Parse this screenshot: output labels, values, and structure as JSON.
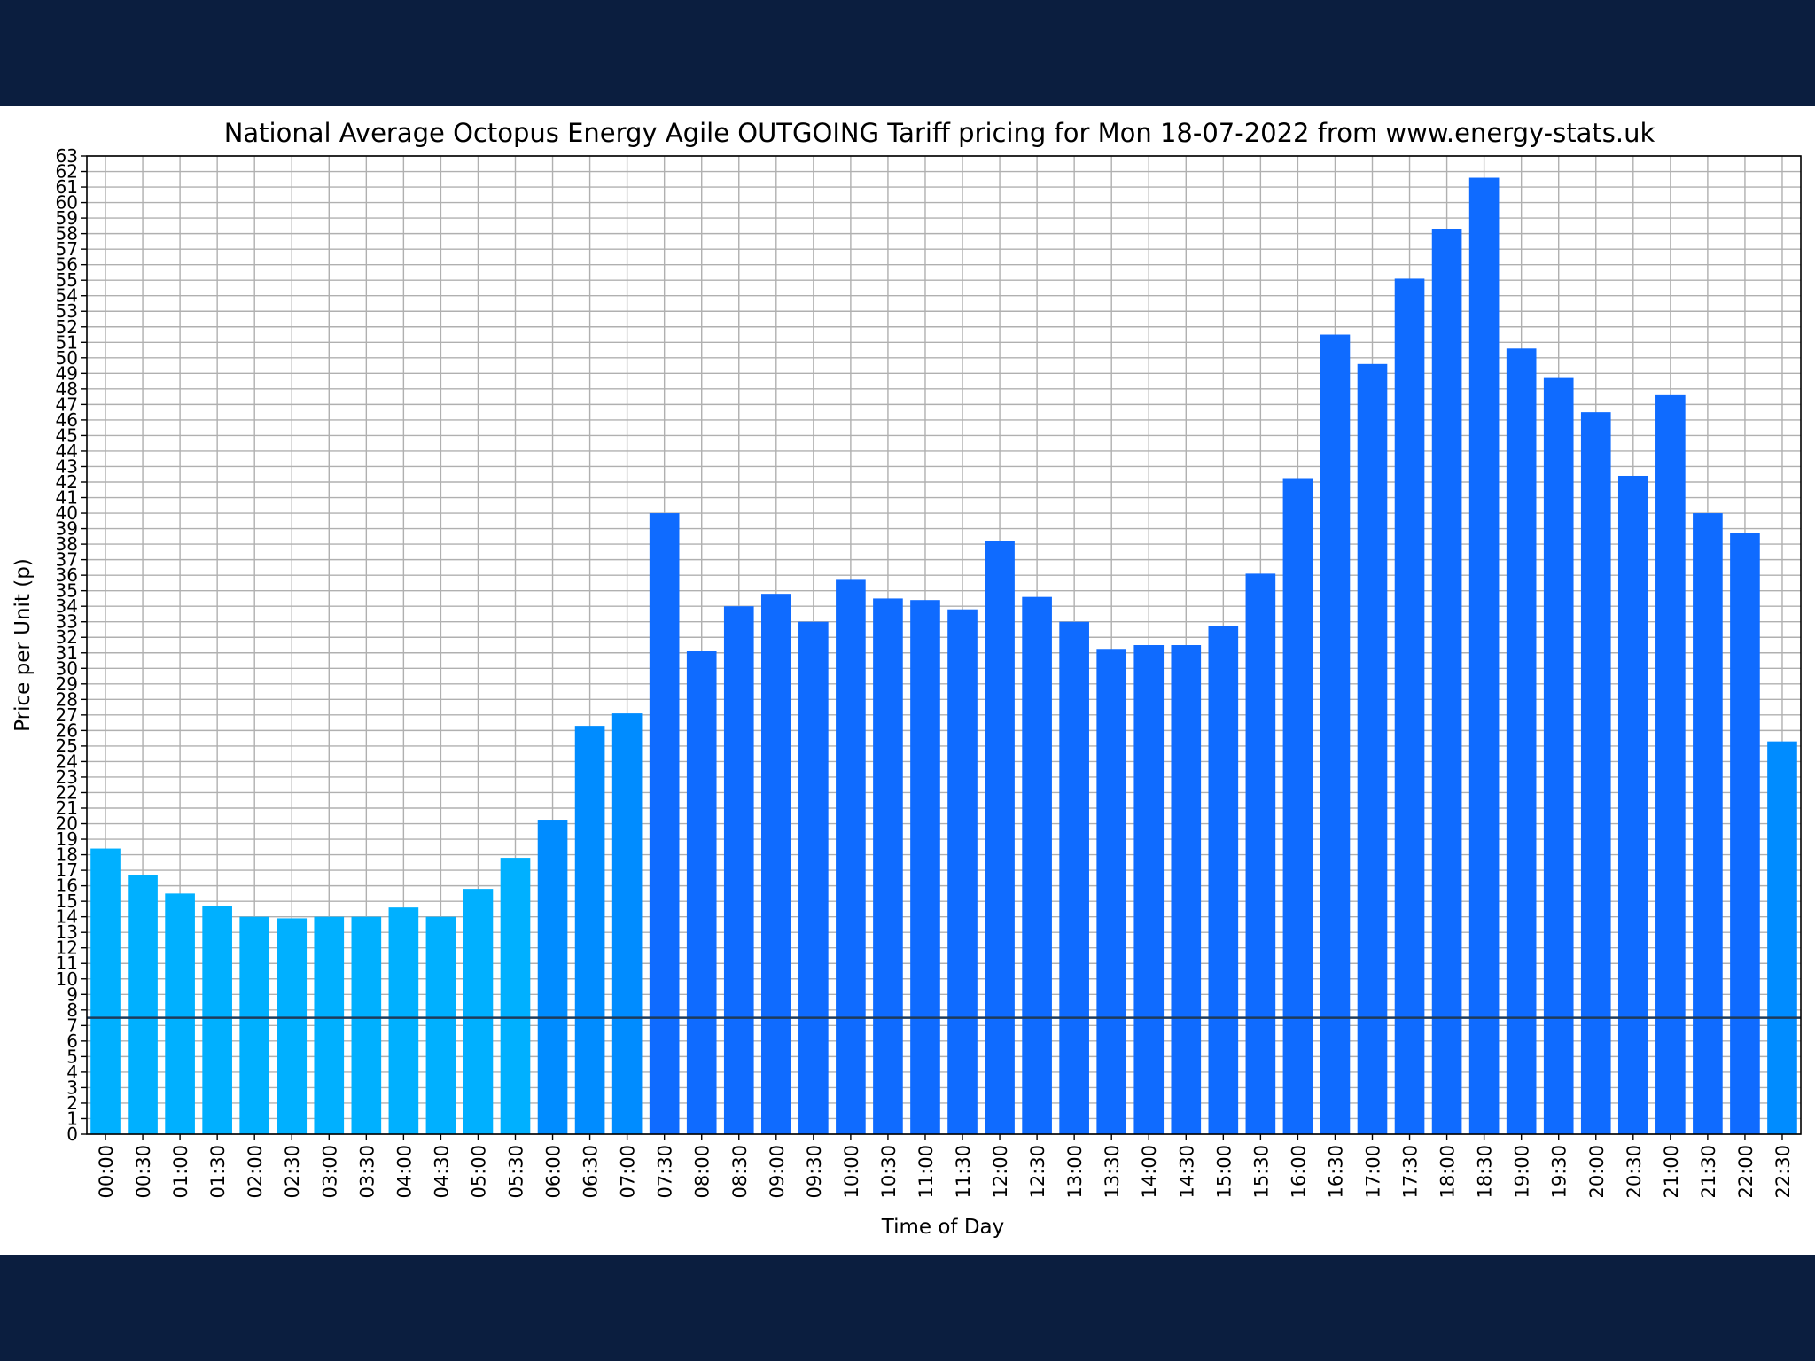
{
  "colors": {
    "page_background": "#0b1e3f",
    "figure_background": "#ffffff",
    "bar_low": "#00b0ff",
    "bar_mid": "#008cff",
    "bar_high": "#0f6bff",
    "grid": "#b0b0b0",
    "reference_line": "#1f3b5a"
  },
  "chart_data": {
    "type": "bar",
    "title": "National Average Octopus Energy Agile OUTGOING Tariff pricing for Mon 18-07-2022 from www.energy-stats.uk",
    "xlabel": "Time of Day",
    "ylabel": "Price per Unit (p)",
    "ylim": [
      0,
      63
    ],
    "yticks": [
      0,
      1,
      2,
      3,
      4,
      5,
      6,
      7,
      8,
      9,
      10,
      11,
      12,
      13,
      14,
      15,
      16,
      17,
      18,
      19,
      20,
      21,
      22,
      23,
      24,
      25,
      26,
      27,
      28,
      29,
      30,
      31,
      32,
      33,
      34,
      35,
      36,
      37,
      38,
      39,
      40,
      41,
      42,
      43,
      44,
      45,
      46,
      47,
      48,
      49,
      50,
      51,
      52,
      53,
      54,
      55,
      56,
      57,
      58,
      59,
      60,
      61,
      62,
      63
    ],
    "grid": true,
    "reference_line": 7.5,
    "categories": [
      "00:00",
      "00:30",
      "01:00",
      "01:30",
      "02:00",
      "02:30",
      "03:00",
      "03:30",
      "04:00",
      "04:30",
      "05:00",
      "05:30",
      "06:00",
      "06:30",
      "07:00",
      "07:30",
      "08:00",
      "08:30",
      "09:00",
      "09:30",
      "10:00",
      "10:30",
      "11:00",
      "11:30",
      "12:00",
      "12:30",
      "13:00",
      "13:30",
      "14:00",
      "14:30",
      "15:00",
      "15:30",
      "16:00",
      "16:30",
      "17:00",
      "17:30",
      "18:00",
      "18:30",
      "19:00",
      "19:30",
      "20:00",
      "20:30",
      "21:00",
      "21:30",
      "22:00",
      "22:30"
    ],
    "values": [
      18.4,
      16.7,
      15.5,
      14.7,
      14.0,
      13.9,
      14.0,
      14.0,
      14.6,
      14.0,
      15.8,
      17.8,
      20.2,
      26.3,
      27.1,
      40.0,
      31.1,
      34.0,
      34.8,
      33.0,
      35.7,
      34.5,
      34.4,
      33.8,
      38.2,
      34.6,
      33.0,
      31.2,
      31.5,
      31.5,
      32.7,
      36.1,
      42.2,
      51.5,
      49.6,
      55.1,
      58.3,
      61.6,
      50.6,
      48.7,
      46.5,
      42.4,
      47.6,
      40.0,
      38.7,
      25.3
    ],
    "bar_color_levels": [
      "low",
      "low",
      "low",
      "low",
      "low",
      "low",
      "low",
      "low",
      "low",
      "low",
      "low",
      "low",
      "mid",
      "mid",
      "mid",
      "high",
      "high",
      "high",
      "high",
      "high",
      "high",
      "high",
      "high",
      "high",
      "high",
      "high",
      "high",
      "high",
      "high",
      "high",
      "high",
      "high",
      "high",
      "high",
      "high",
      "high",
      "high",
      "high",
      "high",
      "high",
      "high",
      "high",
      "high",
      "high",
      "high",
      "mid"
    ]
  }
}
